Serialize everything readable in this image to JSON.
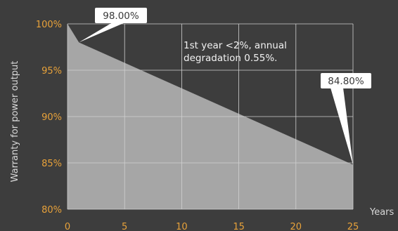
{
  "chart_data": {
    "type": "area",
    "ylabel": "Warranty for power output",
    "xlabel": "Years",
    "xlim": [
      0,
      25
    ],
    "ylim": [
      80,
      100
    ],
    "x_ticks": [
      "0",
      "5",
      "10",
      "15",
      "20",
      "25"
    ],
    "y_ticks": [
      "100%",
      "95%",
      "90%",
      "85%",
      "80%"
    ],
    "grid": true,
    "series": [
      {
        "x": [
          0,
          1,
          25
        ],
        "y": [
          100,
          98.0,
          84.8
        ]
      }
    ],
    "annotation": [
      "1st year <2%, annual",
      "degradation 0.55%."
    ],
    "callouts": [
      {
        "x": 1,
        "y": 98.0,
        "label": "98.00%"
      },
      {
        "x": 25,
        "y": 84.8,
        "label": "84.80%"
      }
    ],
    "colors": {
      "background": "#3d3d3d",
      "area": "#a6a6a6",
      "grid": "#d0d0d0",
      "tick_labels": "#e8a23a",
      "callout_fill": "#ffffff"
    }
  }
}
